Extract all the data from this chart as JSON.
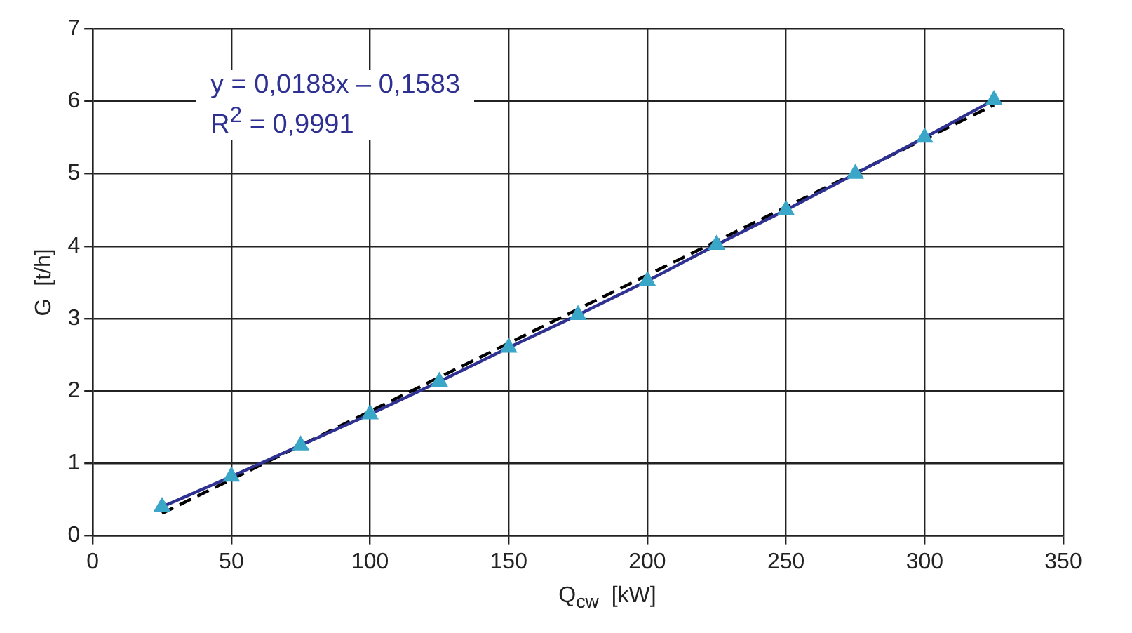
{
  "chart_data": {
    "type": "line",
    "xlabel": "Q$_{cw}$  [kW]",
    "ylabel": "G  [t/h]",
    "xlim": [
      0,
      350
    ],
    "xticks": [
      0,
      50,
      100,
      150,
      200,
      250,
      300,
      350
    ],
    "ylim": [
      0,
      7
    ],
    "yticks": [
      0,
      1,
      2,
      3,
      4,
      5,
      6,
      7
    ],
    "grid": true,
    "legend": false,
    "series": [
      {
        "color": "#2e3192",
        "colors": [
          "#3aa6c8",
          "#3aa6c8",
          "#3aa6c8",
          "#3aa6c8",
          "#3aa6c8",
          "#3aa6c8",
          "#3aa6c8",
          "#3aa6c8",
          "#3aa6c8",
          "#3aa6c8",
          "#3aa6c8",
          "#3aa6c8",
          "#3aa6c8"
        ],
        "marker": "triangle",
        "line_style": "solid",
        "x": [
          25,
          50,
          75,
          100,
          125,
          150,
          175,
          200,
          225,
          250,
          275,
          300,
          325
        ],
        "values": [
          0.4,
          0.82,
          1.25,
          1.68,
          2.13,
          2.6,
          3.05,
          3.52,
          4.02,
          4.5,
          5.0,
          5.5,
          6.02
        ]
      },
      {
        "type": "line",
        "color": "#000000",
        "marker": "none",
        "line_style": "dashed",
        "x": [
          25,
          325
        ],
        "values": [
          0.31,
          5.95
        ]
      }
    ],
    "annotations": [
      "y = 0,0188x – 0,1583",
      "R$^{2}$ = 0,9991"
    ]
  }
}
